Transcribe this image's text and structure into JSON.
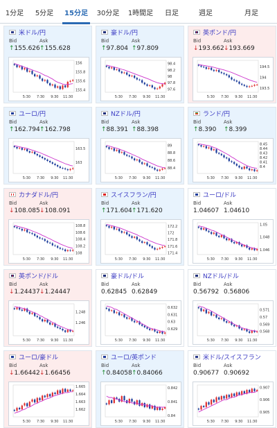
{
  "tabs": [
    {
      "label": "1分足",
      "active": false
    },
    {
      "label": "5分足",
      "active": false
    },
    {
      "label": "15分足",
      "active": true
    },
    {
      "label": "30分足",
      "active": false
    },
    {
      "label": "1時間足",
      "active": false
    },
    {
      "label": "日足",
      "active": false
    },
    {
      "label": "週足",
      "active": false
    },
    {
      "label": "月足",
      "active": false
    }
  ],
  "bid_label": "Bid",
  "ask_label": "Ask",
  "colors": {
    "up": "#e8f3fd",
    "down": "#fdecec",
    "candle_up": "#e03030",
    "candle_down": "#1a3b9a",
    "ma": "#cc33cc"
  },
  "chart_data": [
    {
      "type": "line",
      "pair": "米ドル/円",
      "flag": "us",
      "trend": "up",
      "bid": "155.626",
      "ask": "155.628",
      "bid_dir": "up",
      "ask_dir": "up",
      "yticks": [
        "156",
        "155.8",
        "155.6",
        "155.4"
      ],
      "xticks": [
        "5:30",
        "7:30",
        "9:30",
        "11:30"
      ],
      "closes": [
        155.95,
        155.9,
        155.92,
        155.85,
        155.88,
        155.8,
        155.82,
        155.75,
        155.7,
        155.72,
        155.65,
        155.6,
        155.62,
        155.55,
        155.5,
        155.52,
        155.45,
        155.48,
        155.42,
        155.5,
        155.46,
        155.58,
        155.6,
        155.62
      ],
      "ma": [
        155.98,
        155.96,
        155.94,
        155.92,
        155.9,
        155.88,
        155.86,
        155.84,
        155.82,
        155.8,
        155.78,
        155.75,
        155.72,
        155.7,
        155.67,
        155.64,
        155.6,
        155.57,
        155.55,
        155.53,
        155.52,
        155.52,
        155.53,
        155.54
      ],
      "ylim": [
        155.35,
        156.05
      ]
    },
    {
      "type": "line",
      "pair": "豪ドル/円",
      "flag": "au",
      "trend": "up",
      "bid": "97.804",
      "ask": "97.809",
      "bid_dir": "up",
      "ask_dir": "up",
      "yticks": [
        "98.4",
        "98.2",
        "98",
        "97.8",
        "97.6"
      ],
      "xticks": [
        "5:30",
        "7:30",
        "9:30",
        "11:30"
      ],
      "closes": [
        98.3,
        98.25,
        98.28,
        98.2,
        98.22,
        98.15,
        98.1,
        98.12,
        98.05,
        98.0,
        98.02,
        97.95,
        97.9,
        97.88,
        97.8,
        97.75,
        97.7,
        97.72,
        97.65,
        97.6,
        97.62,
        97.68,
        97.75,
        97.8
      ],
      "ma": [
        98.35,
        98.33,
        98.31,
        98.29,
        98.27,
        98.25,
        98.22,
        98.2,
        98.17,
        98.14,
        98.11,
        98.08,
        98.05,
        98.02,
        97.99,
        97.96,
        97.93,
        97.9,
        97.86,
        97.83,
        97.8,
        97.78,
        97.77,
        97.76
      ],
      "ylim": [
        97.5,
        98.5
      ]
    },
    {
      "type": "line",
      "pair": "英ポンド/円",
      "flag": "gb",
      "trend": "down",
      "bid": "193.662",
      "ask": "193.669",
      "bid_dir": "down",
      "ask_dir": "down",
      "yticks": [
        "194.5",
        "194",
        "193.5"
      ],
      "xticks": [
        "5:30",
        "7:30",
        "9:30",
        "11:30"
      ],
      "closes": [
        194.55,
        194.5,
        194.48,
        194.4,
        194.45,
        194.35,
        194.3,
        194.35,
        194.25,
        194.2,
        194.15,
        194.1,
        194.0,
        193.9,
        193.85,
        193.8,
        193.7,
        193.65,
        193.6,
        193.55,
        193.58,
        193.6,
        193.65,
        193.66
      ],
      "ma": [
        194.6,
        194.58,
        194.56,
        194.54,
        194.52,
        194.5,
        194.47,
        194.44,
        194.41,
        194.38,
        194.35,
        194.31,
        194.27,
        194.23,
        194.18,
        194.13,
        194.08,
        194.03,
        193.98,
        193.93,
        193.88,
        193.84,
        193.8,
        193.77
      ],
      "ylim": [
        193.3,
        194.8
      ]
    },
    {
      "type": "line",
      "pair": "ユーロ/円",
      "flag": "eu",
      "trend": "up",
      "bid": "162.794",
      "ask": "162.798",
      "bid_dir": "up",
      "ask_dir": "up",
      "yticks": [
        "163.5",
        "163"
      ],
      "xticks": [
        "5:30",
        "7:30",
        "9:30",
        "11:30"
      ],
      "closes": [
        163.55,
        163.5,
        163.52,
        163.45,
        163.48,
        163.4,
        163.35,
        163.38,
        163.3,
        163.25,
        163.2,
        163.15,
        163.1,
        163.05,
        163.0,
        162.95,
        162.9,
        162.85,
        162.8,
        162.78,
        162.75,
        162.72,
        162.76,
        162.79
      ],
      "ma": [
        163.6,
        163.58,
        163.56,
        163.54,
        163.52,
        163.5,
        163.47,
        163.44,
        163.41,
        163.38,
        163.35,
        163.31,
        163.27,
        163.23,
        163.19,
        163.15,
        163.11,
        163.07,
        163.03,
        162.99,
        162.95,
        162.92,
        162.89,
        162.87
      ],
      "ylim": [
        162.6,
        163.75
      ]
    },
    {
      "type": "line",
      "pair": "NZドル/円",
      "flag": "nz",
      "trend": "up",
      "bid": "88.391",
      "ask": "88.398",
      "bid_dir": "up",
      "ask_dir": "up",
      "yticks": [
        "89",
        "88.8",
        "88.6",
        "88.4"
      ],
      "xticks": [
        "5:30",
        "7:30",
        "9:30",
        "11:30"
      ],
      "closes": [
        88.95,
        88.9,
        88.92,
        88.85,
        88.88,
        88.8,
        88.82,
        88.75,
        88.72,
        88.7,
        88.65,
        88.6,
        88.62,
        88.55,
        88.5,
        88.52,
        88.45,
        88.42,
        88.4,
        88.35,
        88.32,
        88.35,
        88.38,
        88.39
      ],
      "ma": [
        89.0,
        88.98,
        88.96,
        88.94,
        88.92,
        88.9,
        88.87,
        88.85,
        88.82,
        88.79,
        88.76,
        88.73,
        88.7,
        88.67,
        88.63,
        88.6,
        88.57,
        88.54,
        88.51,
        88.48,
        88.45,
        88.43,
        88.41,
        88.4
      ],
      "ylim": [
        88.25,
        89.1
      ]
    },
    {
      "type": "line",
      "pair": "ランド/円",
      "flag": "za",
      "trend": "up",
      "bid": "8.390",
      "ask": "8.399",
      "bid_dir": "up",
      "ask_dir": "up",
      "yticks": [
        "8.45",
        "8.44",
        "8.43",
        "8.42",
        "8.41",
        "8.4"
      ],
      "xticks": [
        "5:30",
        "7:30",
        "9:30",
        "11:30"
      ],
      "closes": [
        8.447,
        8.444,
        8.445,
        8.44,
        8.442,
        8.436,
        8.438,
        8.43,
        8.428,
        8.425,
        8.42,
        8.418,
        8.412,
        8.41,
        8.406,
        8.402,
        8.398,
        8.395,
        8.4,
        8.396,
        8.392,
        8.394,
        8.39,
        8.392
      ],
      "ma": [
        8.45,
        8.449,
        8.448,
        8.447,
        8.446,
        8.444,
        8.442,
        8.44,
        8.437,
        8.434,
        8.431,
        8.428,
        8.425,
        8.421,
        8.418,
        8.414,
        8.411,
        8.408,
        8.405,
        8.402,
        8.4,
        8.398,
        8.397,
        8.396
      ],
      "ylim": [
        8.385,
        8.455
      ]
    },
    {
      "type": "line",
      "pair": "カナダドル/円",
      "flag": "ca",
      "trend": "down",
      "bid": "108.085",
      "ask": "108.091",
      "bid_dir": "down",
      "ask_dir": "down",
      "yticks": [
        "108.8",
        "108.6",
        "108.4",
        "108.2",
        "108"
      ],
      "xticks": [
        "5:30",
        "7:30",
        "9:30",
        "11:30"
      ],
      "closes": [
        108.75,
        108.72,
        108.7,
        108.65,
        108.68,
        108.6,
        108.58,
        108.55,
        108.5,
        108.45,
        108.42,
        108.4,
        108.35,
        108.3,
        108.28,
        108.22,
        108.2,
        108.15,
        108.12,
        108.1,
        108.05,
        108.08,
        108.06,
        108.085
      ],
      "ma": [
        108.8,
        108.78,
        108.76,
        108.74,
        108.72,
        108.7,
        108.67,
        108.64,
        108.61,
        108.58,
        108.55,
        108.51,
        108.48,
        108.44,
        108.41,
        108.37,
        108.33,
        108.3,
        108.26,
        108.23,
        108.2,
        108.17,
        108.15,
        108.13
      ],
      "ylim": [
        107.95,
        108.88
      ]
    },
    {
      "type": "line",
      "pair": "スイスフラン/円",
      "flag": "ch",
      "trend": "up",
      "bid": "171.604",
      "ask": "171.620",
      "bid_dir": "up",
      "ask_dir": "up",
      "yticks": [
        "172.2",
        "172",
        "171.8",
        "171.6",
        "171.4"
      ],
      "xticks": [
        "5:30",
        "7:30",
        "9:30",
        "11:30"
      ],
      "closes": [
        172.2,
        172.15,
        172.18,
        172.1,
        172.12,
        172.05,
        172.0,
        172.02,
        171.95,
        171.9,
        171.85,
        171.88,
        171.8,
        171.75,
        171.7,
        171.72,
        171.65,
        171.6,
        171.55,
        171.5,
        171.52,
        171.55,
        171.58,
        171.6
      ],
      "ma": [
        172.25,
        172.23,
        172.21,
        172.19,
        172.17,
        172.15,
        172.12,
        172.09,
        172.06,
        172.03,
        172.0,
        171.97,
        171.94,
        171.9,
        171.87,
        171.83,
        171.8,
        171.76,
        171.73,
        171.7,
        171.67,
        171.65,
        171.63,
        171.62
      ],
      "ylim": [
        171.35,
        172.3
      ]
    },
    {
      "type": "line",
      "pair": "ユーロ/ドル",
      "flag": "eu",
      "trend": "flat",
      "bid": "1.04607",
      "ask": "1.04610",
      "bid_dir": "none",
      "ask_dir": "none",
      "yticks": [
        "1.05",
        "1.048",
        "1.046"
      ],
      "xticks": [
        "5:30",
        "7:30",
        "9:30",
        "11:30"
      ],
      "closes": [
        1.0495,
        1.0492,
        1.0494,
        1.049,
        1.0488,
        1.0485,
        1.0487,
        1.0482,
        1.048,
        1.0483,
        1.0478,
        1.0475,
        1.0477,
        1.0472,
        1.047,
        1.0472,
        1.0468,
        1.0465,
        1.0467,
        1.0463,
        1.046,
        1.0462,
        1.0459,
        1.0461
      ],
      "ma": [
        1.0498,
        1.0497,
        1.0496,
        1.0494,
        1.0493,
        1.0491,
        1.049,
        1.0488,
        1.0486,
        1.0484,
        1.0482,
        1.048,
        1.0478,
        1.0476,
        1.0474,
        1.0472,
        1.047,
        1.0469,
        1.0467,
        1.0466,
        1.0464,
        1.0463,
        1.0462,
        1.0461
      ],
      "ylim": [
        1.0452,
        1.0503
      ]
    },
    {
      "type": "line",
      "pair": "英ポンド/ドル",
      "flag": "gb",
      "trend": "down",
      "bid": "1.24437",
      "ask": "1.24447",
      "bid_dir": "down",
      "ask_dir": "down",
      "yticks": [
        "1.248",
        "1.246"
      ],
      "xticks": [
        "5:30",
        "7:30",
        "9:30",
        "11:30"
      ],
      "closes": [
        1.2485,
        1.2488,
        1.2484,
        1.2482,
        1.2486,
        1.248,
        1.2476,
        1.2478,
        1.2472,
        1.247,
        1.2466,
        1.2462,
        1.2465,
        1.246,
        1.2456,
        1.2458,
        1.2452,
        1.245,
        1.2448,
        1.2445,
        1.2442,
        1.2446,
        1.2443,
        1.2444
      ],
      "ma": [
        1.249,
        1.2489,
        1.2488,
        1.2487,
        1.2486,
        1.2484,
        1.2482,
        1.248,
        1.2478,
        1.2476,
        1.2473,
        1.2471,
        1.2468,
        1.2466,
        1.2463,
        1.246,
        1.2458,
        1.2455,
        1.2453,
        1.2451,
        1.2449,
        1.2447,
        1.2446,
        1.2445
      ],
      "ylim": [
        1.2435,
        1.2495
      ]
    },
    {
      "type": "line",
      "pair": "豪ドル/ドル",
      "flag": "au",
      "trend": "flat",
      "bid": "0.62845",
      "ask": "0.62849",
      "bid_dir": "none",
      "ask_dir": "none",
      "yticks": [
        "0.632",
        "0.631",
        "0.63",
        "0.629"
      ],
      "xticks": [
        "5:30",
        "7:30",
        "9:30",
        "11:30"
      ],
      "closes": [
        0.6318,
        0.6315,
        0.6316,
        0.6312,
        0.6313,
        0.6309,
        0.631,
        0.6306,
        0.6304,
        0.6305,
        0.6301,
        0.6299,
        0.63,
        0.6296,
        0.6294,
        0.6292,
        0.629,
        0.6288,
        0.6289,
        0.6286,
        0.6284,
        0.6286,
        0.6283,
        0.62845
      ],
      "ma": [
        0.6322,
        0.6321,
        0.632,
        0.6318,
        0.6317,
        0.6315,
        0.6313,
        0.6311,
        0.6309,
        0.6307,
        0.6305,
        0.6303,
        0.6301,
        0.6299,
        0.6297,
        0.6295,
        0.6293,
        0.6291,
        0.629,
        0.6289,
        0.6288,
        0.6287,
        0.6286,
        0.6286
      ],
      "ylim": [
        0.628,
        0.6325
      ]
    },
    {
      "type": "line",
      "pair": "NZドル/ドル",
      "flag": "nz",
      "trend": "flat",
      "bid": "0.56792",
      "ask": "0.56806",
      "bid_dir": "none",
      "ask_dir": "none",
      "yticks": [
        "0.571",
        "0.57",
        "0.569",
        "0.568"
      ],
      "xticks": [
        "5:30",
        "7:30",
        "9:30",
        "11:30"
      ],
      "closes": [
        0.5712,
        0.5708,
        0.571,
        0.5705,
        0.5707,
        0.5702,
        0.5703,
        0.5699,
        0.5697,
        0.5698,
        0.5694,
        0.5692,
        0.5693,
        0.5689,
        0.5687,
        0.5688,
        0.5684,
        0.5682,
        0.5683,
        0.568,
        0.5678,
        0.5681,
        0.5679,
        0.568
      ],
      "ma": [
        0.5715,
        0.5714,
        0.5713,
        0.5711,
        0.571,
        0.5708,
        0.5706,
        0.5704,
        0.5702,
        0.57,
        0.5698,
        0.5696,
        0.5694,
        0.5692,
        0.569,
        0.5688,
        0.5687,
        0.5685,
        0.5684,
        0.5683,
        0.5682,
        0.5681,
        0.5681,
        0.568
      ],
      "ylim": [
        0.5674,
        0.5718
      ]
    },
    {
      "type": "line",
      "pair": "ユーロ/豪ドル",
      "flag": "eu",
      "trend": "down",
      "bid": "1.66442",
      "ask": "1.66456",
      "bid_dir": "down",
      "ask_dir": "down",
      "yticks": [
        "1.665",
        "1.664",
        "1.663",
        "1.662"
      ],
      "xticks": [
        "5:30",
        "7:30",
        "9:30",
        "11:30"
      ],
      "closes": [
        1.6618,
        1.6622,
        1.662,
        1.6625,
        1.6628,
        1.6624,
        1.663,
        1.6633,
        1.6629,
        1.6635,
        1.6632,
        1.6638,
        1.6636,
        1.664,
        1.6637,
        1.6642,
        1.664,
        1.6645,
        1.6641,
        1.6647,
        1.6643,
        1.6646,
        1.6644,
        1.6645
      ],
      "ma": [
        1.6615,
        1.6616,
        1.6617,
        1.6619,
        1.662,
        1.6622,
        1.6623,
        1.6625,
        1.6627,
        1.6628,
        1.663,
        1.6631,
        1.6633,
        1.6634,
        1.6635,
        1.6637,
        1.6638,
        1.6639,
        1.664,
        1.6641,
        1.6642,
        1.6642,
        1.6643,
        1.6643
      ],
      "ylim": [
        1.661,
        1.6652
      ]
    },
    {
      "type": "line",
      "pair": "ユーロ/英ポンド",
      "flag": "eu",
      "trend": "up",
      "bid": "0.84058",
      "ask": "0.84066",
      "bid_dir": "up",
      "ask_dir": "up",
      "yticks": [
        "0.842",
        "0.841",
        "0.84"
      ],
      "xticks": [
        "5:30",
        "7:30",
        "9:30",
        "11:30"
      ],
      "closes": [
        0.8408,
        0.8411,
        0.8409,
        0.8413,
        0.8412,
        0.841,
        0.8414,
        0.8411,
        0.8409,
        0.8412,
        0.841,
        0.8408,
        0.8411,
        0.8407,
        0.8409,
        0.8406,
        0.8408,
        0.8405,
        0.8407,
        0.8404,
        0.8406,
        0.8404,
        0.8405,
        0.8406
      ],
      "ma": [
        0.8414,
        0.8413,
        0.8413,
        0.8412,
        0.8412,
        0.8411,
        0.8411,
        0.841,
        0.841,
        0.841,
        0.8409,
        0.8409,
        0.8409,
        0.8408,
        0.8408,
        0.8408,
        0.8407,
        0.8407,
        0.8407,
        0.8406,
        0.8406,
        0.8406,
        0.8406,
        0.8406
      ],
      "ylim": [
        0.8399,
        0.8422
      ]
    },
    {
      "type": "line",
      "pair": "米ドル/スイスフラン",
      "flag": "us",
      "trend": "flat",
      "bid": "0.90677",
      "ask": "0.90692",
      "bid_dir": "none",
      "ask_dir": "none",
      "yticks": [
        "0.907",
        "0.906",
        "0.905"
      ],
      "xticks": [
        "5:30",
        "7:30",
        "9:30",
        "11:30"
      ],
      "closes": [
        0.9052,
        0.9055,
        0.9054,
        0.9058,
        0.9056,
        0.906,
        0.9058,
        0.9062,
        0.906,
        0.9063,
        0.9061,
        0.9064,
        0.9062,
        0.9065,
        0.9063,
        0.9066,
        0.9064,
        0.9067,
        0.9065,
        0.9068,
        0.9066,
        0.9069,
        0.9067,
        0.9068
      ],
      "ma": [
        0.905,
        0.9051,
        0.9052,
        0.9053,
        0.9054,
        0.9055,
        0.9056,
        0.9057,
        0.9058,
        0.9059,
        0.906,
        0.906,
        0.9061,
        0.9062,
        0.9062,
        0.9063,
        0.9064,
        0.9064,
        0.9065,
        0.9065,
        0.9066,
        0.9066,
        0.9066,
        0.9067
      ],
      "ylim": [
        0.9046,
        0.9072
      ]
    }
  ]
}
